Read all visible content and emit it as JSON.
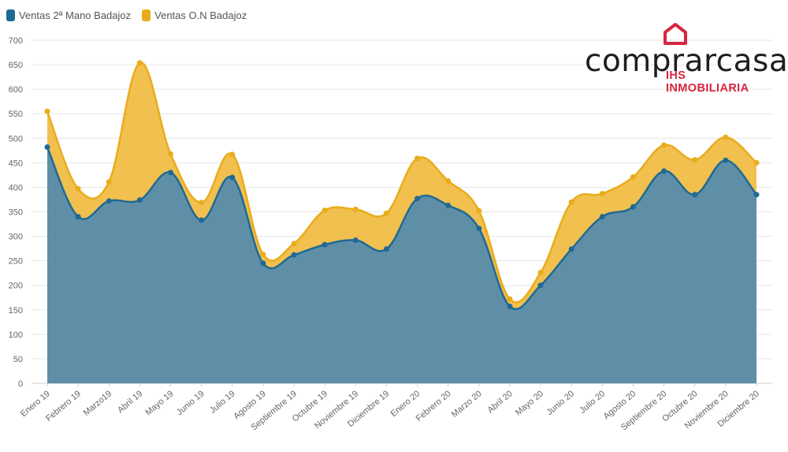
{
  "legend": {
    "series1": "Ventas 2ª Mano Badajoz",
    "series2": "Ventas O.N Badajoz"
  },
  "logo": {
    "word_main": "comprarcasa",
    "word_dot": ".",
    "subtitle": "IHS INMOBILIARIA"
  },
  "colors": {
    "series1": "#1f6a94",
    "series2": "#e9ac1b",
    "brand_red": "#d6263f"
  },
  "chart_data": {
    "type": "area",
    "stacked": false,
    "grid": true,
    "legend_position": "top-left",
    "ylim": [
      0,
      700
    ],
    "yticks": [
      0,
      50,
      100,
      150,
      200,
      250,
      300,
      350,
      400,
      450,
      500,
      550,
      600,
      650,
      700
    ],
    "categories": [
      "Enero 19",
      "Febrero 19",
      "Marzo19",
      "Abril 19",
      "Mayo 19",
      "Junio 19",
      "Julio 19",
      "Agosto 19",
      "Septiembre 19",
      "Octubre 19",
      "Noviembre 19",
      "Diciembre 19",
      "Enero 20",
      "Febrero 20",
      "Marzo 20",
      "Abril 20",
      "Mayo 20",
      "Junio 20",
      "Julio 20",
      "Agosto 20",
      "Septiembre 20",
      "Octubre 20",
      "Noviembre 20",
      "Diciembre 20"
    ],
    "series": [
      {
        "name": "Ventas 2ª Mano Badajoz",
        "color": "#1f6a94",
        "values": [
          482,
          340,
          372,
          374,
          430,
          333,
          420,
          245,
          262,
          283,
          292,
          274,
          377,
          363,
          316,
          157,
          200,
          274,
          340,
          360,
          433,
          385,
          455,
          385
        ]
      },
      {
        "name": "Ventas O.N Badajoz",
        "color": "#e9ac1b",
        "values": [
          555,
          397,
          411,
          654,
          468,
          369,
          467,
          263,
          285,
          353,
          355,
          347,
          459,
          413,
          352,
          172,
          226,
          370,
          387,
          421,
          486,
          456,
          502,
          450
        ]
      }
    ]
  }
}
